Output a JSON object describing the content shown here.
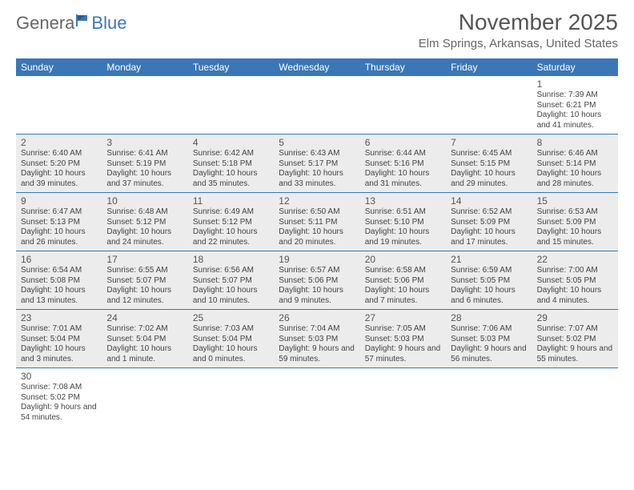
{
  "logo": {
    "part1": "Genera",
    "part2": "Blue"
  },
  "title": "November 2025",
  "location": "Elm Springs, Arkansas, United States",
  "colors": {
    "headerBar": "#3a77b7",
    "shaded": "#ececec",
    "rule": "#3a77b7",
    "text": "#444"
  },
  "weekdays": [
    "Sunday",
    "Monday",
    "Tuesday",
    "Wednesday",
    "Thursday",
    "Friday",
    "Saturday"
  ],
  "grid": {
    "rows": 6,
    "cols": 7,
    "firstDayCol": 6,
    "daysInMonth": 30
  },
  "days": [
    {
      "n": 1,
      "sunrise": "7:39 AM",
      "sunset": "6:21 PM",
      "dl": "10 hours and 41 minutes."
    },
    {
      "n": 2,
      "sunrise": "6:40 AM",
      "sunset": "5:20 PM",
      "dl": "10 hours and 39 minutes."
    },
    {
      "n": 3,
      "sunrise": "6:41 AM",
      "sunset": "5:19 PM",
      "dl": "10 hours and 37 minutes."
    },
    {
      "n": 4,
      "sunrise": "6:42 AM",
      "sunset": "5:18 PM",
      "dl": "10 hours and 35 minutes."
    },
    {
      "n": 5,
      "sunrise": "6:43 AM",
      "sunset": "5:17 PM",
      "dl": "10 hours and 33 minutes."
    },
    {
      "n": 6,
      "sunrise": "6:44 AM",
      "sunset": "5:16 PM",
      "dl": "10 hours and 31 minutes."
    },
    {
      "n": 7,
      "sunrise": "6:45 AM",
      "sunset": "5:15 PM",
      "dl": "10 hours and 29 minutes."
    },
    {
      "n": 8,
      "sunrise": "6:46 AM",
      "sunset": "5:14 PM",
      "dl": "10 hours and 28 minutes."
    },
    {
      "n": 9,
      "sunrise": "6:47 AM",
      "sunset": "5:13 PM",
      "dl": "10 hours and 26 minutes."
    },
    {
      "n": 10,
      "sunrise": "6:48 AM",
      "sunset": "5:12 PM",
      "dl": "10 hours and 24 minutes."
    },
    {
      "n": 11,
      "sunrise": "6:49 AM",
      "sunset": "5:12 PM",
      "dl": "10 hours and 22 minutes."
    },
    {
      "n": 12,
      "sunrise": "6:50 AM",
      "sunset": "5:11 PM",
      "dl": "10 hours and 20 minutes."
    },
    {
      "n": 13,
      "sunrise": "6:51 AM",
      "sunset": "5:10 PM",
      "dl": "10 hours and 19 minutes."
    },
    {
      "n": 14,
      "sunrise": "6:52 AM",
      "sunset": "5:09 PM",
      "dl": "10 hours and 17 minutes."
    },
    {
      "n": 15,
      "sunrise": "6:53 AM",
      "sunset": "5:09 PM",
      "dl": "10 hours and 15 minutes."
    },
    {
      "n": 16,
      "sunrise": "6:54 AM",
      "sunset": "5:08 PM",
      "dl": "10 hours and 13 minutes."
    },
    {
      "n": 17,
      "sunrise": "6:55 AM",
      "sunset": "5:07 PM",
      "dl": "10 hours and 12 minutes."
    },
    {
      "n": 18,
      "sunrise": "6:56 AM",
      "sunset": "5:07 PM",
      "dl": "10 hours and 10 minutes."
    },
    {
      "n": 19,
      "sunrise": "6:57 AM",
      "sunset": "5:06 PM",
      "dl": "10 hours and 9 minutes."
    },
    {
      "n": 20,
      "sunrise": "6:58 AM",
      "sunset": "5:06 PM",
      "dl": "10 hours and 7 minutes."
    },
    {
      "n": 21,
      "sunrise": "6:59 AM",
      "sunset": "5:05 PM",
      "dl": "10 hours and 6 minutes."
    },
    {
      "n": 22,
      "sunrise": "7:00 AM",
      "sunset": "5:05 PM",
      "dl": "10 hours and 4 minutes."
    },
    {
      "n": 23,
      "sunrise": "7:01 AM",
      "sunset": "5:04 PM",
      "dl": "10 hours and 3 minutes."
    },
    {
      "n": 24,
      "sunrise": "7:02 AM",
      "sunset": "5:04 PM",
      "dl": "10 hours and 1 minute."
    },
    {
      "n": 25,
      "sunrise": "7:03 AM",
      "sunset": "5:04 PM",
      "dl": "10 hours and 0 minutes."
    },
    {
      "n": 26,
      "sunrise": "7:04 AM",
      "sunset": "5:03 PM",
      "dl": "9 hours and 59 minutes."
    },
    {
      "n": 27,
      "sunrise": "7:05 AM",
      "sunset": "5:03 PM",
      "dl": "9 hours and 57 minutes."
    },
    {
      "n": 28,
      "sunrise": "7:06 AM",
      "sunset": "5:03 PM",
      "dl": "9 hours and 56 minutes."
    },
    {
      "n": 29,
      "sunrise": "7:07 AM",
      "sunset": "5:02 PM",
      "dl": "9 hours and 55 minutes."
    },
    {
      "n": 30,
      "sunrise": "7:08 AM",
      "sunset": "5:02 PM",
      "dl": "9 hours and 54 minutes."
    }
  ],
  "labels": {
    "sunrise": "Sunrise: ",
    "sunset": "Sunset: ",
    "daylight": "Daylight: "
  }
}
